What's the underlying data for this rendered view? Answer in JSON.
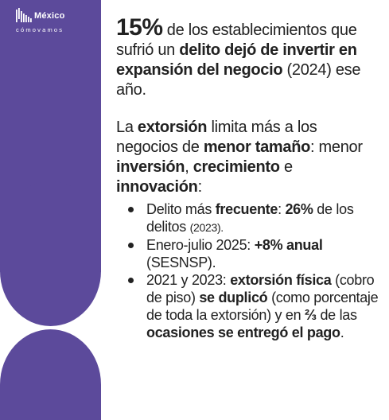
{
  "logo": {
    "name": "México",
    "tagline": "cómovamos",
    "icon": "bars-logo-icon"
  },
  "colors": {
    "band": "#5c4a9b",
    "text": "#222222"
  },
  "paragraph1": {
    "stat": "15%",
    "t1": " de los establecimientos que sufrió un ",
    "b1": "delito dejó de invertir en expansión del negocio",
    "t2": " (2024) ese año."
  },
  "paragraph2": {
    "t1": "La ",
    "b1": "extorsión",
    "t2": " limita más a los negocios de ",
    "b2": "menor tamaño",
    "t3": ": menor ",
    "b3": "inversión",
    "t4": ", ",
    "b4": "crecimiento",
    "t5": " e ",
    "b5": "innovación",
    "t6": ":"
  },
  "bullets": [
    {
      "t1": "Delito más ",
      "b1": "frecuente",
      "t2": ": ",
      "b2": "26%",
      "t3": " de los delitos ",
      "small": "(2023)."
    },
    {
      "t1": "Enero-julio 2025: ",
      "b1": "+8% anual",
      "t2": " (SESNSP)."
    },
    {
      "t1": "2021 y 2023: ",
      "b1": "extorsión física",
      "t2": " (cobro de piso) ",
      "b2": "se duplicó",
      "t3": " (como porcentaje de toda la extorsión) y en ",
      "b3": "⅔",
      "t4": " de las ",
      "b4": "ocasiones se entregó el pago",
      "t5": "."
    }
  ]
}
